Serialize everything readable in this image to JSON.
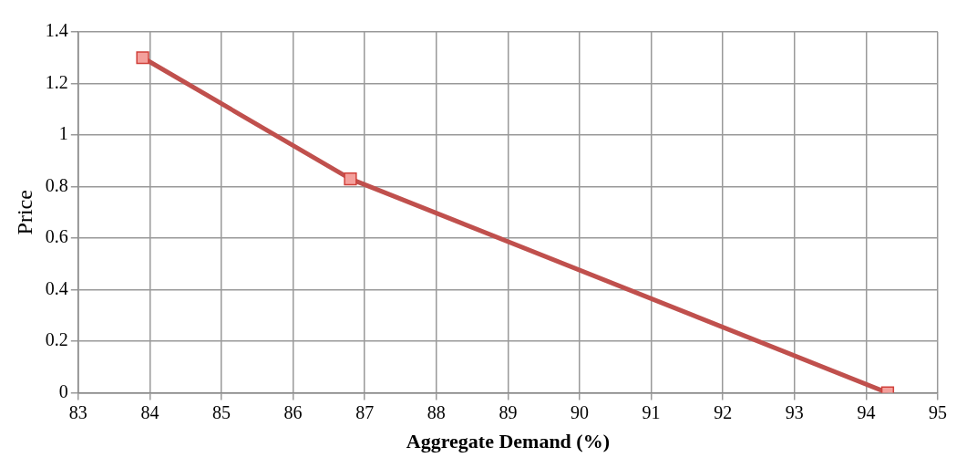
{
  "chart_data": {
    "type": "line",
    "xlabel": "Aggregate Demand (%)",
    "ylabel": "Price",
    "series": [
      {
        "color": "#c0504d",
        "x": [
          83.9,
          86.8,
          94.3
        ],
        "values": [
          1.3,
          0.83,
          0
        ]
      }
    ],
    "xlim": [
      83,
      95
    ],
    "xticks": [
      83,
      84,
      85,
      86,
      87,
      88,
      89,
      90,
      91,
      92,
      93,
      94,
      95
    ],
    "ylim": [
      0,
      1.4
    ],
    "yticks": [
      0,
      0.2,
      0.4,
      0.6,
      0.8,
      1,
      1.2,
      1.4
    ],
    "grid": true,
    "legend": false,
    "marker": "square",
    "line_style": "solid"
  }
}
